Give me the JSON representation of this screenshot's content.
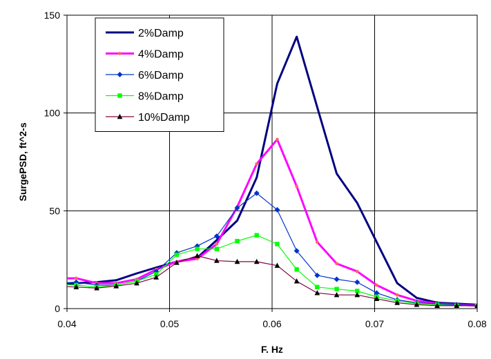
{
  "chart_data": {
    "type": "line",
    "title": "",
    "xlabel": "F. Hz",
    "ylabel": "SurgePSD, ft^2-s",
    "xlim": [
      0.04,
      0.08
    ],
    "ylim": [
      0,
      150
    ],
    "xticks": [
      0.04,
      0.05,
      0.06,
      0.07,
      0.08
    ],
    "yticks": [
      0,
      50,
      100,
      150
    ],
    "xtick_labels": [
      "0.04",
      "0.05",
      "0.06",
      "0.07",
      "0.08"
    ],
    "ytick_labels": [
      "0",
      "50",
      "100",
      "150"
    ],
    "grid": true,
    "legend_position": "top-left",
    "x": [
      0.0389,
      0.0409,
      0.0429,
      0.0448,
      0.0468,
      0.0487,
      0.0507,
      0.0527,
      0.0546,
      0.0566,
      0.0585,
      0.0605,
      0.0624,
      0.0644,
      0.0663,
      0.0683,
      0.0702,
      0.0722,
      0.0741,
      0.0761,
      0.078,
      0.08
    ],
    "series": [
      {
        "name": "2%Damp",
        "color": "#000080",
        "marker": "none",
        "width": 3,
        "values": [
          12,
          13,
          13.5,
          14.5,
          18,
          21,
          24,
          26,
          35,
          45,
          67,
          115,
          139,
          103,
          69,
          54,
          34,
          13,
          5.5,
          3,
          2.5,
          2
        ]
      },
      {
        "name": "4%Damp",
        "color": "#FF00FF",
        "marker": "circle",
        "marker_color": "#FF6666",
        "width": 3,
        "values": [
          15.5,
          15.5,
          13,
          13,
          15,
          20,
          24,
          25.5,
          33,
          52,
          74,
          86.5,
          62.5,
          34,
          23,
          19,
          12,
          7,
          4,
          2.5,
          2,
          1.5
        ]
      },
      {
        "name": "6%Damp",
        "color": "#0033CC",
        "marker": "diamond",
        "width": 1.2,
        "values": [
          13,
          13.5,
          12,
          12,
          14,
          19,
          28.5,
          32,
          37,
          51.5,
          59,
          50.5,
          29.5,
          17,
          15,
          13.5,
          8,
          4.5,
          3,
          2.5,
          2,
          1.5
        ]
      },
      {
        "name": "8%Damp",
        "color": "#00FF00",
        "marker": "square",
        "width": 1.2,
        "values": [
          12.5,
          12,
          11,
          12,
          14,
          17.5,
          27.5,
          30.5,
          30.5,
          34.5,
          37.5,
          33,
          20,
          11,
          10,
          9,
          6,
          4,
          2.5,
          2,
          1.5,
          1.5
        ]
      },
      {
        "name": "10%Damp",
        "color": "#800040",
        "marker": "triangle",
        "marker_color": "#000000",
        "width": 1.2,
        "values": [
          11.5,
          11,
          10.5,
          11.5,
          13,
          16,
          23.5,
          27,
          24.5,
          24,
          24,
          22,
          14,
          8,
          7,
          7,
          5,
          3,
          2,
          1.5,
          1.5,
          1.5
        ]
      }
    ]
  }
}
